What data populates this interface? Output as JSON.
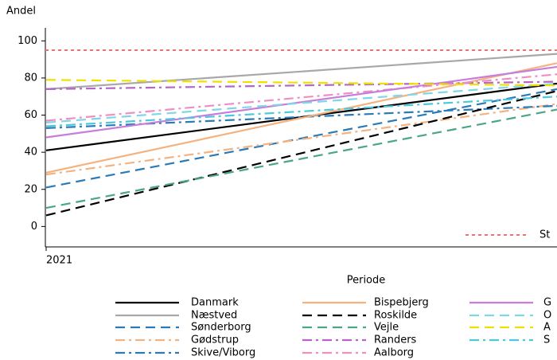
{
  "chart_data": {
    "type": "line",
    "y_label": "Andel",
    "x_label": "Periode",
    "categories": [
      "2021",
      null
    ],
    "ylim": [
      -11,
      107
    ],
    "yticks": [
      0,
      20,
      40,
      60,
      80,
      100
    ],
    "reference_lines": [
      {
        "value": 95,
        "label": "St",
        "color": "#f07070"
      }
    ],
    "series": [
      {
        "name": "Danmark",
        "color": "#000000",
        "dash": "solid",
        "values": [
          41,
          77
        ]
      },
      {
        "name": "Næstved",
        "color": "#a8a8a8",
        "dash": "solid",
        "values": [
          74,
          93
        ]
      },
      {
        "name": "Sønderborg",
        "color": "#2a7ab8",
        "dash": "dash",
        "values": [
          21,
          74
        ]
      },
      {
        "name": "Gødstrup",
        "color": "#f4b27f",
        "dash": "dashdot",
        "values": [
          28,
          66
        ]
      },
      {
        "name": "Skive/Viborg",
        "color": "#2a7ab8",
        "dash": "dashdot",
        "values": [
          53,
          65
        ]
      },
      {
        "name": "Bispebjerg",
        "color": "#f4b27f",
        "dash": "solid",
        "values": [
          29,
          88
        ]
      },
      {
        "name": "Roskilde",
        "color": "#000000",
        "dash": "dash",
        "values": [
          6,
          73
        ]
      },
      {
        "name": "Vejle",
        "color": "#4aa58a",
        "dash": "dash",
        "values": [
          10,
          63
        ]
      },
      {
        "name": "Randers",
        "color": "#b565c8",
        "dash": "dashdot",
        "values": [
          74,
          78
        ]
      },
      {
        "name": "Aalborg",
        "color": "#ee8fc4",
        "dash": "dashdot",
        "values": [
          57,
          82
        ]
      },
      {
        "name": "G",
        "color": "#c77ddb",
        "dash": "solid",
        "values": [
          48,
          86
        ]
      },
      {
        "name": "O",
        "color": "#7fd6e6",
        "dash": "dash",
        "values": [
          56,
          77
        ]
      },
      {
        "name": "A",
        "color": "#f0e000",
        "dash": "dash",
        "values": [
          79,
          76
        ]
      },
      {
        "name": "S",
        "color": "#4cc8dc",
        "dash": "dashdot",
        "values": [
          54,
          70
        ]
      }
    ]
  }
}
